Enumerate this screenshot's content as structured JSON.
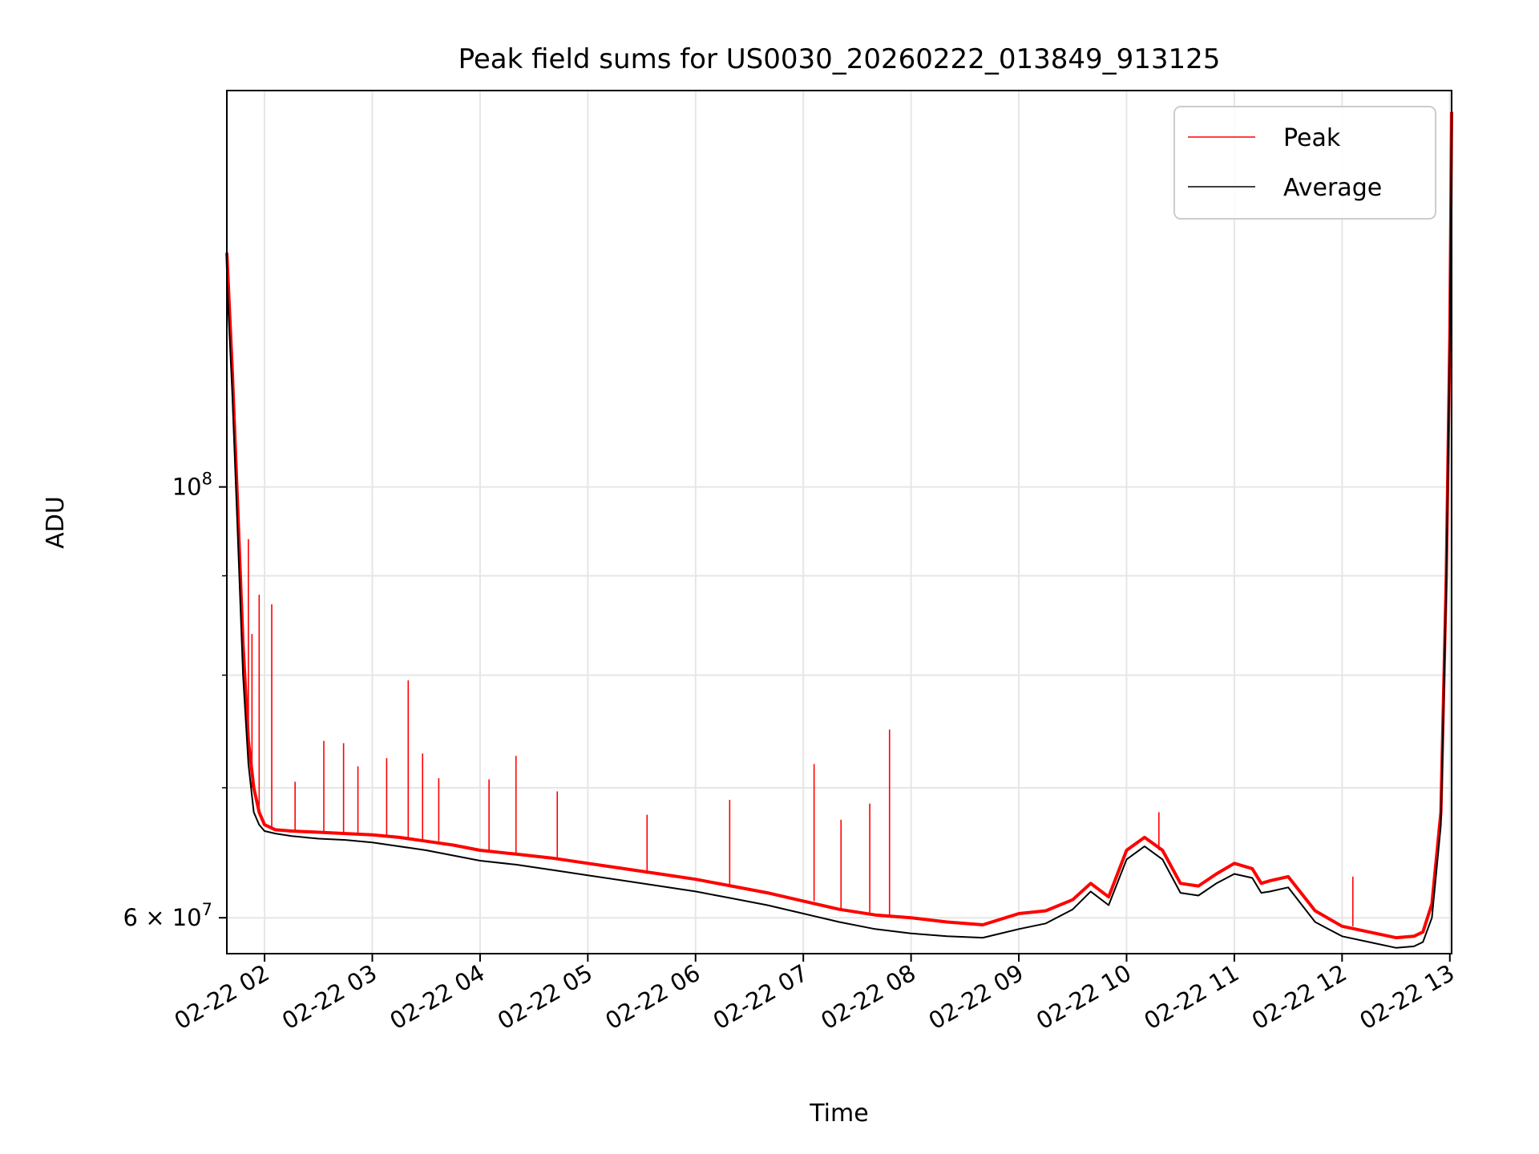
{
  "chart_data": {
    "type": "line",
    "title": "Peak field sums for US0030_20260222_013849_913125",
    "xlabel": "Time",
    "ylabel": "ADU",
    "yscale": "log",
    "xlim": [
      "2026-02-22 01:39",
      "2026-02-22 13:01"
    ],
    "ylim": [
      57500000,
      160000000
    ],
    "grid": true,
    "legend_position": "top-right",
    "xtick_labels": [
      "02-22 02",
      "02-22 03",
      "02-22 04",
      "02-22 05",
      "02-22 06",
      "02-22 07",
      "02-22 08",
      "02-22 09",
      "02-22 10",
      "02-22 11",
      "02-22 12",
      "02-22 13"
    ],
    "xtick_values": [
      "2026-02-22 02:00",
      "2026-02-22 03:00",
      "2026-02-22 04:00",
      "2026-02-22 05:00",
      "2026-02-22 06:00",
      "2026-02-22 07:00",
      "2026-02-22 08:00",
      "2026-02-22 09:00",
      "2026-02-22 10:00",
      "2026-02-22 11:00",
      "2026-02-22 12:00",
      "2026-02-22 13:00"
    ],
    "ytick_major": [
      {
        "value": 60000000,
        "base": "6 × 10",
        "exp": "7"
      },
      {
        "value": 100000000,
        "base": "10",
        "exp": "8"
      }
    ],
    "ytick_minor": [
      70000000,
      80000000,
      90000000
    ],
    "series": [
      {
        "name": "Peak",
        "color": "#ff0000",
        "x": [
          "2026-02-22 01:39",
          "2026-02-22 01:42",
          "2026-02-22 01:45",
          "2026-02-22 01:48",
          "2026-02-22 01:51",
          "2026-02-22 01:54",
          "2026-02-22 01:57",
          "2026-02-22 02:00",
          "2026-02-22 02:06",
          "2026-02-22 02:15",
          "2026-02-22 02:30",
          "2026-02-22 02:45",
          "2026-02-22 03:00",
          "2026-02-22 03:15",
          "2026-02-22 03:30",
          "2026-02-22 03:45",
          "2026-02-22 04:00",
          "2026-02-22 04:20",
          "2026-02-22 04:40",
          "2026-02-22 05:00",
          "2026-02-22 05:20",
          "2026-02-22 05:40",
          "2026-02-22 06:00",
          "2026-02-22 06:20",
          "2026-02-22 06:40",
          "2026-02-22 07:00",
          "2026-02-22 07:20",
          "2026-02-22 07:40",
          "2026-02-22 08:00",
          "2026-02-22 08:20",
          "2026-02-22 08:40",
          "2026-02-22 09:00",
          "2026-02-22 09:15",
          "2026-02-22 09:30",
          "2026-02-22 09:40",
          "2026-02-22 09:50",
          "2026-02-22 10:00",
          "2026-02-22 10:10",
          "2026-02-22 10:20",
          "2026-02-22 10:30",
          "2026-02-22 10:40",
          "2026-02-22 10:50",
          "2026-02-22 11:00",
          "2026-02-22 11:10",
          "2026-02-22 11:15",
          "2026-02-22 11:20",
          "2026-02-22 11:30",
          "2026-02-22 11:45",
          "2026-02-22 12:00",
          "2026-02-22 12:15",
          "2026-02-22 12:30",
          "2026-02-22 12:40",
          "2026-02-22 12:45",
          "2026-02-22 12:50",
          "2026-02-22 12:55",
          "2026-02-22 12:58",
          "2026-02-22 13:00",
          "2026-02-22 13:01"
        ],
        "y": [
          132000000,
          115000000,
          98000000,
          83000000,
          74000000,
          70000000,
          68000000,
          67000000,
          66600000,
          66500000,
          66400000,
          66300000,
          66200000,
          66000000,
          65700000,
          65400000,
          65000000,
          64700000,
          64400000,
          64000000,
          63600000,
          63200000,
          62800000,
          62300000,
          61800000,
          61200000,
          60600000,
          60200000,
          60000000,
          59700000,
          59500000,
          60300000,
          60500000,
          61300000,
          62500000,
          61500000,
          65000000,
          66000000,
          65000000,
          62500000,
          62300000,
          63200000,
          64000000,
          63600000,
          62500000,
          62700000,
          63000000,
          60500000,
          59400000,
          59000000,
          58600000,
          58700000,
          59000000,
          61000000,
          68000000,
          90000000,
          120000000,
          156000000
        ]
      },
      {
        "name": "Average",
        "color": "#000000",
        "x": [
          "2026-02-22 01:39",
          "2026-02-22 01:42",
          "2026-02-22 01:45",
          "2026-02-22 01:48",
          "2026-02-22 01:51",
          "2026-02-22 01:54",
          "2026-02-22 01:57",
          "2026-02-22 02:00",
          "2026-02-22 02:06",
          "2026-02-22 02:15",
          "2026-02-22 02:30",
          "2026-02-22 02:45",
          "2026-02-22 03:00",
          "2026-02-22 03:15",
          "2026-02-22 03:30",
          "2026-02-22 03:45",
          "2026-02-22 04:00",
          "2026-02-22 04:20",
          "2026-02-22 04:40",
          "2026-02-22 05:00",
          "2026-02-22 05:20",
          "2026-02-22 05:40",
          "2026-02-22 06:00",
          "2026-02-22 06:20",
          "2026-02-22 06:40",
          "2026-02-22 07:00",
          "2026-02-22 07:20",
          "2026-02-22 07:40",
          "2026-02-22 08:00",
          "2026-02-22 08:20",
          "2026-02-22 08:40",
          "2026-02-22 09:00",
          "2026-02-22 09:15",
          "2026-02-22 09:30",
          "2026-02-22 09:40",
          "2026-02-22 09:50",
          "2026-02-22 10:00",
          "2026-02-22 10:10",
          "2026-02-22 10:20",
          "2026-02-22 10:30",
          "2026-02-22 10:40",
          "2026-02-22 10:50",
          "2026-02-22 11:00",
          "2026-02-22 11:10",
          "2026-02-22 11:15",
          "2026-02-22 11:20",
          "2026-02-22 11:30",
          "2026-02-22 11:45",
          "2026-02-22 12:00",
          "2026-02-22 12:15",
          "2026-02-22 12:30",
          "2026-02-22 12:40",
          "2026-02-22 12:45",
          "2026-02-22 12:50",
          "2026-02-22 12:55",
          "2026-02-22 12:58",
          "2026-02-22 13:00",
          "2026-02-22 13:01"
        ],
        "y": [
          128000000,
          112000000,
          95000000,
          80000000,
          72000000,
          68000000,
          67000000,
          66500000,
          66300000,
          66100000,
          65900000,
          65800000,
          65600000,
          65300000,
          65000000,
          64600000,
          64200000,
          63900000,
          63500000,
          63100000,
          62700000,
          62300000,
          61900000,
          61400000,
          60900000,
          60300000,
          59700000,
          59200000,
          58900000,
          58700000,
          58600000,
          59200000,
          59600000,
          60600000,
          61900000,
          60900000,
          64300000,
          65300000,
          64300000,
          61800000,
          61600000,
          62500000,
          63200000,
          62900000,
          61800000,
          61900000,
          62200000,
          59700000,
          58700000,
          58300000,
          57900000,
          58000000,
          58300000,
          60000000,
          67000000,
          89000000,
          119000000,
          155000000
        ]
      }
    ],
    "spikes": [
      {
        "x": "2026-02-22 01:51",
        "y": 94000000
      },
      {
        "x": "2026-02-22 01:53",
        "y": 84000000
      },
      {
        "x": "2026-02-22 01:57",
        "y": 88000000
      },
      {
        "x": "2026-02-22 02:04",
        "y": 87000000
      },
      {
        "x": "2026-02-22 02:17",
        "y": 70500000
      },
      {
        "x": "2026-02-22 02:33",
        "y": 74000000
      },
      {
        "x": "2026-02-22 02:44",
        "y": 73800000
      },
      {
        "x": "2026-02-22 02:52",
        "y": 71800000
      },
      {
        "x": "2026-02-22 03:08",
        "y": 72500000
      },
      {
        "x": "2026-02-22 03:20",
        "y": 79500000
      },
      {
        "x": "2026-02-22 03:28",
        "y": 72900000
      },
      {
        "x": "2026-02-22 03:37",
        "y": 70800000
      },
      {
        "x": "2026-02-22 04:05",
        "y": 70700000
      },
      {
        "x": "2026-02-22 04:20",
        "y": 72700000
      },
      {
        "x": "2026-02-22 04:43",
        "y": 69700000
      },
      {
        "x": "2026-02-22 05:33",
        "y": 67800000
      },
      {
        "x": "2026-02-22 06:19",
        "y": 69000000
      },
      {
        "x": "2026-02-22 07:06",
        "y": 72000000
      },
      {
        "x": "2026-02-22 07:21",
        "y": 67400000
      },
      {
        "x": "2026-02-22 07:37",
        "y": 68700000
      },
      {
        "x": "2026-02-22 07:48",
        "y": 75000000
      },
      {
        "x": "2026-02-22 10:18",
        "y": 68000000
      },
      {
        "x": "2026-02-22 12:06",
        "y": 63000000
      }
    ]
  }
}
